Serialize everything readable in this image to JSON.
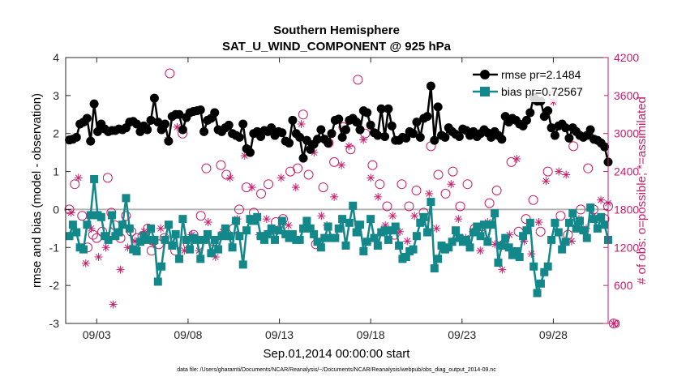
{
  "chart_data": {
    "type": "line",
    "title": "Southern Hemisphere",
    "subtitle": "SAT_U_WIND_COMPONENT @ 925 hPa",
    "xlabel": "Sep.01,2014 00:00:00 start",
    "ylabel_left": "rmse and bias (model - observation)",
    "ylabel_right": "# of obs: o=possible; *=assimilated",
    "footer": "data file: /Users/gharamti/Documents/NCAR/Reanalysis/~/Documents/NCAR/Reanalysis/webpub/obs_diag_output_2014-09.nc",
    "x_unit": "days since Sep.01 00:00",
    "xlim": [
      0.3,
      30.0
    ],
    "ylim_left": [
      -3,
      4
    ],
    "ylim_right": [
      0,
      4200
    ],
    "x_ticks": [
      2,
      7,
      12,
      17,
      22,
      27
    ],
    "x_tick_labels": [
      "09/03",
      "09/08",
      "09/13",
      "09/18",
      "09/23",
      "09/28"
    ],
    "y_ticks_left": [
      "-3",
      "-2",
      "-1",
      "0",
      "1",
      "2",
      "3",
      "4"
    ],
    "y_ticks_right": [
      "0",
      "600",
      "1200",
      "1800",
      "2400",
      "3000",
      "3600",
      "4200"
    ],
    "zero_line": 0,
    "colors": {
      "rmse": "#000000",
      "bias": "#13888a",
      "obs": "#c81d6b",
      "zero": "#b4b4b4",
      "axis_right": "#c81d6b"
    },
    "legend": [
      {
        "name": "rmse pr=2.1484",
        "marker": "circle",
        "color": "#000000"
      },
      {
        "name": "bias pr=0.72567",
        "marker": "square",
        "color": "#13888a"
      }
    ],
    "series": [
      {
        "name": "rmse",
        "marker": "circle",
        "color": "#000000",
        "values": [
          1.83,
          1.85,
          1.9,
          2.25,
          2.3,
          2.4,
          1.8,
          2.78,
          2.05,
          2.25,
          2.12,
          2.05,
          2.08,
          2.08,
          2.12,
          2.1,
          2.15,
          2.3,
          2.32,
          2.25,
          2.05,
          2.2,
          2.1,
          2.35,
          2.93,
          2.3,
          2.1,
          2.25,
          1.8,
          2.45,
          2.5,
          2.5,
          2.1,
          2.42,
          2.55,
          2.58,
          2.6,
          2.62,
          2.05,
          2.35,
          2.4,
          2.55,
          2.1,
          2.05,
          2.15,
          2.22,
          2.0,
          1.95,
          1.9,
          2.25,
          1.6,
          1.5,
          2.0,
          2.05,
          1.92,
          2.08,
          2.05,
          2.15,
          1.95,
          2.05,
          2.02,
          1.8,
          1.75,
          2.35,
          2.0,
          1.9,
          1.35,
          1.82,
          1.58,
          1.72,
          1.85,
          2.1,
          1.85,
          1.75,
          2.0,
          2.35,
          2.38,
          1.9,
          2.1,
          2.35,
          2.4,
          2.3,
          2.1,
          2.6,
          2.55,
          2.22,
          2.02,
          1.95,
          2.65,
          1.92,
          2.65,
          2.2,
          1.82,
          1.82,
          1.9,
          1.88,
          2.05,
          2.0,
          2.3,
          1.9,
          2.4,
          2.45,
          3.25,
          1.82,
          2.7,
          1.95,
          1.9,
          2.15,
          2.05,
          1.98,
          1.92,
          2.12,
          2.08,
          1.95,
          2.05,
          1.92,
          2.0,
          2.1,
          2.02,
          1.9,
          2.05,
          1.95,
          1.85,
          2.45,
          2.3,
          2.4,
          2.35,
          2.25,
          2.2,
          2.35,
          2.55,
          2.95,
          2.85,
          2.85,
          2.45,
          2.6,
          2.15,
          1.95,
          2.2,
          2.25,
          2.15,
          1.88,
          2.15,
          2.05,
          1.95,
          1.9,
          1.95,
          2.1,
          1.85,
          1.82,
          1.75,
          1.65,
          1.25
        ]
      },
      {
        "name": "bias",
        "marker": "square",
        "color": "#13888a",
        "values": [
          -0.7,
          -0.4,
          -0.6,
          -1.0,
          -1.05,
          -0.4,
          -0.15,
          0.8,
          -0.15,
          -0.2,
          -0.7,
          -0.8,
          -0.15,
          -0.7,
          -0.6,
          -0.4,
          0.3,
          -0.5,
          -1.05,
          -1.1,
          -0.85,
          -0.7,
          -0.8,
          -0.5,
          -0.8,
          -1.9,
          -1.5,
          -0.8,
          -0.4,
          -0.95,
          -0.65,
          -1.3,
          -0.25,
          -0.8,
          -1.05,
          -0.75,
          -0.8,
          -1.3,
          -0.8,
          -0.65,
          -1.15,
          -0.8,
          -1.05,
          -0.7,
          -0.5,
          -0.7,
          -1.0,
          -0.3,
          -0.7,
          -1.45,
          -0.55,
          -0.25,
          -0.3,
          -0.2,
          -0.7,
          -0.8,
          -0.65,
          -0.5,
          -0.8,
          -0.55,
          -0.3,
          -0.65,
          -0.75,
          -0.65,
          -0.8,
          -0.8,
          -0.5,
          -0.3,
          -0.5,
          -0.65,
          -0.85,
          -1.0,
          -0.75,
          -0.45,
          -0.75,
          -0.75,
          -0.5,
          -0.25,
          -0.95,
          -0.35,
          0.1,
          -0.6,
          -0.4,
          -1.1,
          -0.85,
          -0.25,
          -0.75,
          -0.95,
          -0.6,
          -0.55,
          -0.8,
          -0.55,
          -0.45,
          -0.95,
          -1.3,
          -1.25,
          -1.1,
          -1.05,
          -0.7,
          -0.35,
          -0.2,
          -0.6,
          0.2,
          -1.55,
          -1.3,
          -0.95,
          -1.05,
          -1.0,
          -0.85,
          -0.55,
          -0.75,
          -0.85,
          -0.8,
          -1.0,
          -0.6,
          -0.45,
          -0.7,
          -0.4,
          -0.85,
          -0.4,
          -0.1,
          -1.4,
          -0.95,
          -0.75,
          -1.0,
          -1.2,
          -1.1,
          -1.25,
          -0.7,
          -0.55,
          -0.35,
          -1.5,
          -2.2,
          -1.95,
          -1.65,
          -1.5,
          -0.8,
          -0.35,
          -0.6,
          -1.05,
          -0.85,
          -0.35,
          -0.1,
          -0.5,
          -0.3,
          -0.55,
          -0.75,
          0.05,
          -0.25,
          -0.5,
          -0.2,
          -0.4,
          -0.8
        ]
      },
      {
        "name": "obs_possible",
        "marker": "circle-open",
        "color": "#c81d6b",
        "axis": "right",
        "points": [
          [
            0.5,
            1800
          ],
          [
            0.8,
            2200
          ],
          [
            1.2,
            1700
          ],
          [
            1.5,
            1200
          ],
          [
            1.8,
            1400
          ],
          [
            2.0,
            1350
          ],
          [
            2.3,
            1450
          ],
          [
            2.6,
            2300
          ],
          [
            2.8,
            1750
          ],
          [
            3.0,
            1550
          ],
          [
            3.3,
            1350
          ],
          [
            3.6,
            1700
          ],
          [
            3.9,
            1450
          ],
          [
            4.2,
            1350
          ],
          [
            4.5,
            1380
          ],
          [
            4.8,
            1500
          ],
          [
            5.0,
            1150
          ],
          [
            5.4,
            1250
          ],
          [
            5.7,
            1350
          ],
          [
            6.0,
            3950
          ],
          [
            6.3,
            1150
          ],
          [
            6.7,
            3000
          ],
          [
            7.0,
            1250
          ],
          [
            7.3,
            1400
          ],
          [
            7.7,
            1700
          ],
          [
            8.0,
            2450
          ],
          [
            8.4,
            1300
          ],
          [
            8.8,
            2500
          ],
          [
            9.1,
            2350
          ],
          [
            9.5,
            1500
          ],
          [
            9.8,
            1800
          ],
          [
            10.2,
            2150
          ],
          [
            10.6,
            1750
          ],
          [
            11.0,
            2050
          ],
          [
            11.4,
            2200
          ],
          [
            11.8,
            1600
          ],
          [
            12.2,
            1650
          ],
          [
            12.6,
            2400
          ],
          [
            13.0,
            2450
          ],
          [
            13.3,
            3300
          ],
          [
            13.6,
            2350
          ],
          [
            14.0,
            1250
          ],
          [
            14.4,
            2150
          ],
          [
            14.7,
            2850
          ],
          [
            15.0,
            2550
          ],
          [
            15.5,
            3100
          ],
          [
            15.9,
            2750
          ],
          [
            16.3,
            3850
          ],
          [
            16.7,
            3000
          ],
          [
            17.1,
            2500
          ],
          [
            17.5,
            2200
          ],
          [
            17.9,
            1850
          ],
          [
            18.3,
            1400
          ],
          [
            18.7,
            2200
          ],
          [
            19.1,
            1850
          ],
          [
            19.5,
            2100
          ],
          [
            19.9,
            1750
          ],
          [
            20.3,
            2800
          ],
          [
            20.7,
            2350
          ],
          [
            21.1,
            2050
          ],
          [
            21.5,
            2400
          ],
          [
            21.9,
            1850
          ],
          [
            22.3,
            2200
          ],
          [
            22.7,
            1500
          ],
          [
            23.1,
            1400
          ],
          [
            23.5,
            1900
          ],
          [
            23.9,
            2100
          ],
          [
            24.3,
            1250
          ],
          [
            24.7,
            2550
          ],
          [
            25.1,
            1450
          ],
          [
            25.5,
            1650
          ],
          [
            25.9,
            1950
          ],
          [
            26.3,
            1450
          ],
          [
            26.7,
            2400
          ],
          [
            27.0,
            3600
          ],
          [
            27.4,
            1700
          ],
          [
            27.8,
            1400
          ],
          [
            28.1,
            2800
          ],
          [
            28.5,
            1800
          ],
          [
            28.9,
            2450
          ],
          [
            29.2,
            1800
          ],
          [
            29.5,
            1600
          ],
          [
            29.8,
            1650
          ],
          [
            30.0,
            1850
          ],
          [
            30.3,
            0
          ]
        ]
      },
      {
        "name": "obs_assimilated",
        "marker": "asterisk",
        "color": "#c81d6b",
        "axis": "right",
        "points": [
          [
            0.6,
            1750
          ],
          [
            1.0,
            2300
          ],
          [
            1.4,
            950
          ],
          [
            1.7,
            1500
          ],
          [
            2.1,
            1050
          ],
          [
            2.5,
            1200
          ],
          [
            2.9,
            300
          ],
          [
            3.3,
            850
          ],
          [
            3.7,
            1200
          ],
          [
            4.1,
            1300
          ],
          [
            4.6,
            1450
          ],
          [
            5.1,
            1250
          ],
          [
            5.5,
            1500
          ],
          [
            5.9,
            2900
          ],
          [
            6.4,
            3100
          ],
          [
            6.8,
            1150
          ],
          [
            7.2,
            1400
          ],
          [
            7.6,
            1150
          ],
          [
            8.1,
            1600
          ],
          [
            8.5,
            1050
          ],
          [
            8.9,
            1450
          ],
          [
            9.3,
            2300
          ],
          [
            9.7,
            1650
          ],
          [
            10.1,
            2650
          ],
          [
            10.5,
            2150
          ],
          [
            10.9,
            1400
          ],
          [
            11.3,
            1650
          ],
          [
            11.7,
            1450
          ],
          [
            12.1,
            2300
          ],
          [
            12.5,
            1550
          ],
          [
            12.9,
            2150
          ],
          [
            13.2,
            3150
          ],
          [
            13.5,
            1550
          ],
          [
            13.9,
            2700
          ],
          [
            14.3,
            1700
          ],
          [
            14.6,
            1550
          ],
          [
            15.0,
            2000
          ],
          [
            15.4,
            2500
          ],
          [
            15.8,
            2800
          ],
          [
            16.2,
            3200
          ],
          [
            16.6,
            2900
          ],
          [
            17.0,
            2300
          ],
          [
            17.4,
            2000
          ],
          [
            17.8,
            1550
          ],
          [
            18.2,
            1700
          ],
          [
            18.6,
            1450
          ],
          [
            19.0,
            1300
          ],
          [
            19.4,
            1700
          ],
          [
            19.8,
            1600
          ],
          [
            20.2,
            2050
          ],
          [
            20.6,
            1500
          ],
          [
            21.0,
            1200
          ],
          [
            21.4,
            2200
          ],
          [
            21.8,
            1650
          ],
          [
            22.2,
            1350
          ],
          [
            22.6,
            1450
          ],
          [
            23.0,
            1150
          ],
          [
            23.4,
            1600
          ],
          [
            23.8,
            1250
          ],
          [
            24.2,
            850
          ],
          [
            24.6,
            1400
          ],
          [
            25.0,
            2600
          ],
          [
            25.4,
            1300
          ],
          [
            25.8,
            1100
          ],
          [
            26.2,
            1600
          ],
          [
            26.6,
            2250
          ],
          [
            27.0,
            3500
          ],
          [
            27.3,
            2400
          ],
          [
            27.7,
            2350
          ],
          [
            28.0,
            1300
          ],
          [
            28.4,
            1650
          ],
          [
            28.8,
            1500
          ],
          [
            29.2,
            1700
          ],
          [
            29.6,
            1950
          ],
          [
            30.0,
            1900
          ],
          [
            30.3,
            0
          ]
        ]
      }
    ]
  }
}
